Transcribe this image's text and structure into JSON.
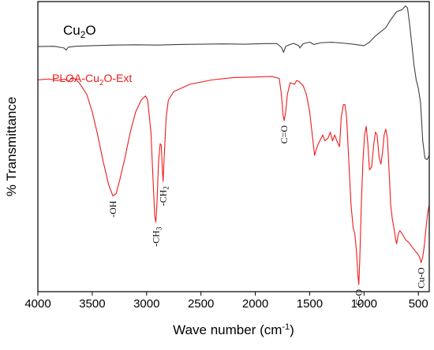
{
  "chart_data": {
    "type": "line",
    "title": "",
    "xlabel": "Wave number (cm",
    "xlabel_sup": "-1",
    "xlabel_tail": ")",
    "ylabel": "% Transmittance",
    "xlim": [
      4000,
      400
    ],
    "ylim": [
      0,
      100
    ],
    "x_reversed": true,
    "x_ticks": [
      4000,
      3500,
      3000,
      2500,
      2000,
      1500,
      1000,
      500
    ],
    "grid": false,
    "series": [
      {
        "name": "Cu2O",
        "label_main": "Cu",
        "label_sub": "2",
        "label_tail": "O",
        "color": "#404040",
        "points": [
          [
            4000,
            84.5
          ],
          [
            3850,
            84.6
          ],
          [
            3760,
            84.0
          ],
          [
            3740,
            83.3
          ],
          [
            3720,
            84.3
          ],
          [
            3650,
            84.6
          ],
          [
            3500,
            84.8
          ],
          [
            3300,
            85.0
          ],
          [
            3100,
            85.1
          ],
          [
            2900,
            85.0
          ],
          [
            2700,
            85.2
          ],
          [
            2500,
            85.3
          ],
          [
            2300,
            85.4
          ],
          [
            2100,
            85.3
          ],
          [
            1900,
            85.5
          ],
          [
            1800,
            85.5
          ],
          [
            1760,
            84.2
          ],
          [
            1740,
            82.5
          ],
          [
            1720,
            84.6
          ],
          [
            1650,
            85.6
          ],
          [
            1600,
            84.8
          ],
          [
            1590,
            84.0
          ],
          [
            1560,
            85.5
          ],
          [
            1500,
            86.0
          ],
          [
            1460,
            85.2
          ],
          [
            1400,
            85.8
          ],
          [
            1300,
            86.0
          ],
          [
            1200,
            85.7
          ],
          [
            1100,
            85.3
          ],
          [
            1000,
            84.8
          ],
          [
            950,
            86.0
          ],
          [
            900,
            88.0
          ],
          [
            800,
            91.0
          ],
          [
            750,
            94.0
          ],
          [
            700,
            96.5
          ],
          [
            650,
            97.2
          ],
          [
            620,
            98.5
          ],
          [
            600,
            97.8
          ],
          [
            580,
            92.0
          ],
          [
            560,
            85.0
          ],
          [
            540,
            78.0
          ],
          [
            520,
            73.0
          ],
          [
            500,
            70.0
          ],
          [
            480,
            65.0
          ],
          [
            460,
            52.0
          ],
          [
            440,
            46.0
          ],
          [
            420,
            45.5
          ],
          [
            400,
            47.0
          ]
        ]
      },
      {
        "name": "PLGA-Cu2O-Ext",
        "label_main": "PLGA-Cu",
        "label_sub": "2",
        "label_tail": "O-Ext",
        "color": "#ee1c1c",
        "points": [
          [
            4000,
            73.0
          ],
          [
            3900,
            73.3
          ],
          [
            3820,
            72.8
          ],
          [
            3750,
            73.3
          ],
          [
            3720,
            72.4
          ],
          [
            3680,
            74.0
          ],
          [
            3620,
            72.0
          ],
          [
            3550,
            68.0
          ],
          [
            3500,
            62.0
          ],
          [
            3450,
            54.0
          ],
          [
            3400,
            45.0
          ],
          [
            3350,
            37.0
          ],
          [
            3310,
            33.0
          ],
          [
            3280,
            33.8
          ],
          [
            3250,
            38.0
          ],
          [
            3200,
            46.0
          ],
          [
            3150,
            55.0
          ],
          [
            3100,
            62.0
          ],
          [
            3050,
            66.0
          ],
          [
            3010,
            67.5
          ],
          [
            2990,
            66.0
          ],
          [
            2960,
            55.0
          ],
          [
            2940,
            38.0
          ],
          [
            2925,
            26.0
          ],
          [
            2915,
            24.0
          ],
          [
            2905,
            30.0
          ],
          [
            2890,
            45.0
          ],
          [
            2875,
            51.0
          ],
          [
            2865,
            50.5
          ],
          [
            2855,
            42.0
          ],
          [
            2848,
            38.0
          ],
          [
            2840,
            45.0
          ],
          [
            2820,
            60.0
          ],
          [
            2800,
            66.0
          ],
          [
            2750,
            69.0
          ],
          [
            2600,
            71.5
          ],
          [
            2400,
            73.0
          ],
          [
            2200,
            73.8
          ],
          [
            2000,
            74.0
          ],
          [
            1850,
            74.2
          ],
          [
            1780,
            73.5
          ],
          [
            1760,
            68.0
          ],
          [
            1745,
            61.0
          ],
          [
            1735,
            59.0
          ],
          [
            1722,
            61.5
          ],
          [
            1705,
            68.0
          ],
          [
            1680,
            72.0
          ],
          [
            1640,
            71.5
          ],
          [
            1620,
            72.8
          ],
          [
            1600,
            72.5
          ],
          [
            1560,
            71.0
          ],
          [
            1530,
            68.0
          ],
          [
            1500,
            62.0
          ],
          [
            1470,
            52.0
          ],
          [
            1455,
            47.0
          ],
          [
            1440,
            49.0
          ],
          [
            1420,
            51.0
          ],
          [
            1400,
            52.5
          ],
          [
            1380,
            54.0
          ],
          [
            1360,
            52.0
          ],
          [
            1330,
            53.0
          ],
          [
            1310,
            55.0
          ],
          [
            1290,
            52.0
          ],
          [
            1270,
            54.0
          ],
          [
            1250,
            52.0
          ],
          [
            1225,
            50.0
          ],
          [
            1210,
            60.0
          ],
          [
            1190,
            64.5
          ],
          [
            1175,
            64.5
          ],
          [
            1160,
            60.0
          ],
          [
            1140,
            45.0
          ],
          [
            1120,
            30.0
          ],
          [
            1100,
            22.0
          ],
          [
            1085,
            20.0
          ],
          [
            1070,
            14.0
          ],
          [
            1055,
            5.0
          ],
          [
            1048,
            2.5
          ],
          [
            1040,
            10.0
          ],
          [
            1025,
            30.0
          ],
          [
            1010,
            45.0
          ],
          [
            995,
            54.0
          ],
          [
            980,
            57.0
          ],
          [
            965,
            51.0
          ],
          [
            950,
            42.0
          ],
          [
            930,
            43.0
          ],
          [
            910,
            51.0
          ],
          [
            895,
            55.0
          ],
          [
            880,
            54.0
          ],
          [
            860,
            46.0
          ],
          [
            845,
            44.0
          ],
          [
            830,
            48.0
          ],
          [
            815,
            54.0
          ],
          [
            800,
            56.0
          ],
          [
            785,
            53.0
          ],
          [
            770,
            42.0
          ],
          [
            755,
            30.0
          ],
          [
            740,
            25.0
          ],
          [
            725,
            22.0
          ],
          [
            710,
            18.0
          ],
          [
            700,
            16.5
          ],
          [
            685,
            20.0
          ],
          [
            670,
            21.0
          ],
          [
            650,
            20.0
          ],
          [
            620,
            18.0
          ],
          [
            590,
            17.0
          ],
          [
            560,
            15.5
          ],
          [
            530,
            14.0
          ],
          [
            505,
            13.0
          ],
          [
            490,
            12.0
          ],
          [
            475,
            10.0
          ],
          [
            460,
            12.0
          ],
          [
            445,
            16.0
          ],
          [
            430,
            22.0
          ],
          [
            415,
            27.0
          ],
          [
            400,
            30.0
          ]
        ]
      }
    ],
    "annotations": [
      {
        "text": "-OH",
        "x": 3310,
        "y": 33.0,
        "rotate": -90
      },
      {
        "text": "-CH",
        "sub": "3",
        "x": 2915,
        "y": 24.0,
        "rotate": -90
      },
      {
        "text": "-CH",
        "sub": "2",
        "x": 2848,
        "y": 38.0,
        "rotate": -90
      },
      {
        "text": "C=O",
        "x": 1735,
        "y": 59.0,
        "rotate": -90
      },
      {
        "text": "C-O",
        "x": 1048,
        "y": 2.5,
        "rotate": -90
      },
      {
        "text": "Cu-O",
        "x": 475,
        "y": 10.0,
        "rotate": -90
      }
    ]
  }
}
